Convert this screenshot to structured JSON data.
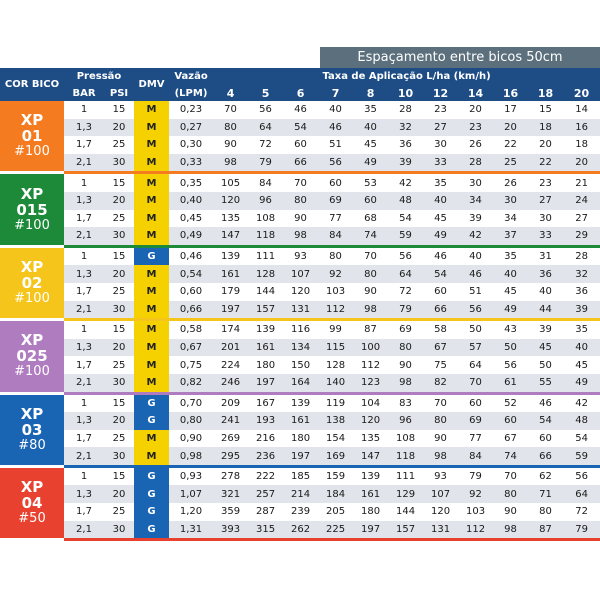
{
  "header": {
    "spacing": "Espaçamento entre bicos 50cm",
    "col_bico": "COR BICO",
    "col_pressao": "Pressão",
    "col_bar": "BAR",
    "col_psi": "PSI",
    "col_dmv": "DMV",
    "col_vazao_1": "Vazão",
    "col_vazao_2": "(LPM)",
    "col_taxa": "Taxa  de Aplicação L/ha (km/h)",
    "speeds": [
      "4",
      "5",
      "6",
      "7",
      "8",
      "10",
      "12",
      "14",
      "16",
      "18",
      "20"
    ]
  },
  "colors": {
    "header_bg": "#1e4d86",
    "spacing_bg": "#5b6f7c",
    "dmv_M": "#f5d100",
    "dmv_G": "#1a64b4",
    "row_stripe": "#e1e4ea"
  },
  "groups": [
    {
      "code": "XP 01",
      "code_l1": "XP",
      "code_l2": "01",
      "mesh": "#100",
      "color": "#f47b20",
      "rows": [
        {
          "bar": "1",
          "psi": "15",
          "dmv": "M",
          "vazao": "0,23",
          "rates": [
            "70",
            "56",
            "46",
            "40",
            "35",
            "28",
            "23",
            "20",
            "17",
            "15",
            "14"
          ]
        },
        {
          "bar": "1,3",
          "psi": "20",
          "dmv": "M",
          "vazao": "0,27",
          "rates": [
            "80",
            "64",
            "54",
            "46",
            "40",
            "32",
            "27",
            "23",
            "20",
            "18",
            "16"
          ]
        },
        {
          "bar": "1,7",
          "psi": "25",
          "dmv": "M",
          "vazao": "0,30",
          "rates": [
            "90",
            "72",
            "60",
            "51",
            "45",
            "36",
            "30",
            "26",
            "22",
            "20",
            "18"
          ]
        },
        {
          "bar": "2,1",
          "psi": "30",
          "dmv": "M",
          "vazao": "0,33",
          "rates": [
            "98",
            "79",
            "66",
            "56",
            "49",
            "39",
            "33",
            "28",
            "25",
            "22",
            "20"
          ]
        }
      ]
    },
    {
      "code": "XP 015",
      "code_l1": "XP",
      "code_l2": "015",
      "mesh": "#100",
      "color": "#1d8a3a",
      "rows": [
        {
          "bar": "1",
          "psi": "15",
          "dmv": "M",
          "vazao": "0,35",
          "rates": [
            "105",
            "84",
            "70",
            "60",
            "53",
            "42",
            "35",
            "30",
            "26",
            "23",
            "21"
          ]
        },
        {
          "bar": "1,3",
          "psi": "20",
          "dmv": "M",
          "vazao": "0,40",
          "rates": [
            "120",
            "96",
            "80",
            "69",
            "60",
            "48",
            "40",
            "34",
            "30",
            "27",
            "24"
          ]
        },
        {
          "bar": "1,7",
          "psi": "25",
          "dmv": "M",
          "vazao": "0,45",
          "rates": [
            "135",
            "108",
            "90",
            "77",
            "68",
            "54",
            "45",
            "39",
            "34",
            "30",
            "27"
          ]
        },
        {
          "bar": "2,1",
          "psi": "30",
          "dmv": "M",
          "vazao": "0,49",
          "rates": [
            "147",
            "118",
            "98",
            "84",
            "74",
            "59",
            "49",
            "42",
            "37",
            "33",
            "29"
          ]
        }
      ]
    },
    {
      "code": "XP 02",
      "code_l1": "XP",
      "code_l2": "02",
      "mesh": "#100",
      "color": "#f6c51b",
      "rows": [
        {
          "bar": "1",
          "psi": "15",
          "dmv": "G",
          "vazao": "0,46",
          "rates": [
            "139",
            "111",
            "93",
            "80",
            "70",
            "56",
            "46",
            "40",
            "35",
            "31",
            "28"
          ]
        },
        {
          "bar": "1,3",
          "psi": "20",
          "dmv": "M",
          "vazao": "0,54",
          "rates": [
            "161",
            "128",
            "107",
            "92",
            "80",
            "64",
            "54",
            "46",
            "40",
            "36",
            "32"
          ]
        },
        {
          "bar": "1,7",
          "psi": "25",
          "dmv": "M",
          "vazao": "0,60",
          "rates": [
            "179",
            "144",
            "120",
            "103",
            "90",
            "72",
            "60",
            "51",
            "45",
            "40",
            "36"
          ]
        },
        {
          "bar": "2,1",
          "psi": "30",
          "dmv": "M",
          "vazao": "0,66",
          "rates": [
            "197",
            "157",
            "131",
            "112",
            "98",
            "79",
            "66",
            "56",
            "49",
            "44",
            "39"
          ]
        }
      ]
    },
    {
      "code": "XP 025",
      "code_l1": "XP",
      "code_l2": "025",
      "mesh": "#100",
      "color": "#b07cc0",
      "rows": [
        {
          "bar": "1",
          "psi": "15",
          "dmv": "M",
          "vazao": "0,58",
          "rates": [
            "174",
            "139",
            "116",
            "99",
            "87",
            "69",
            "58",
            "50",
            "43",
            "39",
            "35"
          ]
        },
        {
          "bar": "1,3",
          "psi": "20",
          "dmv": "M",
          "vazao": "0,67",
          "rates": [
            "201",
            "161",
            "134",
            "115",
            "100",
            "80",
            "67",
            "57",
            "50",
            "45",
            "40"
          ]
        },
        {
          "bar": "1,7",
          "psi": "25",
          "dmv": "M",
          "vazao": "0,75",
          "rates": [
            "224",
            "180",
            "150",
            "128",
            "112",
            "90",
            "75",
            "64",
            "56",
            "50",
            "45"
          ]
        },
        {
          "bar": "2,1",
          "psi": "30",
          "dmv": "M",
          "vazao": "0,82",
          "rates": [
            "246",
            "197",
            "164",
            "140",
            "123",
            "98",
            "82",
            "70",
            "61",
            "55",
            "49"
          ]
        }
      ]
    },
    {
      "code": "XP 03",
      "code_l1": "XP",
      "code_l2": "03",
      "mesh": "#80",
      "color": "#1a64b4",
      "rows": [
        {
          "bar": "1",
          "psi": "15",
          "dmv": "G",
          "vazao": "0,70",
          "rates": [
            "209",
            "167",
            "139",
            "119",
            "104",
            "83",
            "70",
            "60",
            "52",
            "46",
            "42"
          ]
        },
        {
          "bar": "1,3",
          "psi": "20",
          "dmv": "G",
          "vazao": "0,80",
          "rates": [
            "241",
            "193",
            "161",
            "138",
            "120",
            "96",
            "80",
            "69",
            "60",
            "54",
            "48"
          ]
        },
        {
          "bar": "1,7",
          "psi": "25",
          "dmv": "M",
          "vazao": "0,90",
          "rates": [
            "269",
            "216",
            "180",
            "154",
            "135",
            "108",
            "90",
            "77",
            "67",
            "60",
            "54"
          ]
        },
        {
          "bar": "2,1",
          "psi": "30",
          "dmv": "M",
          "vazao": "0,98",
          "rates": [
            "295",
            "236",
            "197",
            "169",
            "147",
            "118",
            "98",
            "84",
            "74",
            "66",
            "59"
          ]
        }
      ]
    },
    {
      "code": "XP 04",
      "code_l1": "XP",
      "code_l2": "04",
      "mesh": "#50",
      "color": "#e8412f",
      "rows": [
        {
          "bar": "1",
          "psi": "15",
          "dmv": "G",
          "vazao": "0,93",
          "rates": [
            "278",
            "222",
            "185",
            "159",
            "139",
            "111",
            "93",
            "79",
            "70",
            "62",
            "56"
          ]
        },
        {
          "bar": "1,3",
          "psi": "20",
          "dmv": "G",
          "vazao": "1,07",
          "rates": [
            "321",
            "257",
            "214",
            "184",
            "161",
            "129",
            "107",
            "92",
            "80",
            "71",
            "64"
          ]
        },
        {
          "bar": "1,7",
          "psi": "25",
          "dmv": "G",
          "vazao": "1,20",
          "rates": [
            "359",
            "287",
            "239",
            "205",
            "180",
            "144",
            "120",
            "103",
            "90",
            "80",
            "72"
          ]
        },
        {
          "bar": "2,1",
          "psi": "30",
          "dmv": "G",
          "vazao": "1,31",
          "rates": [
            "393",
            "315",
            "262",
            "225",
            "197",
            "157",
            "131",
            "112",
            "98",
            "87",
            "79"
          ]
        }
      ]
    }
  ]
}
